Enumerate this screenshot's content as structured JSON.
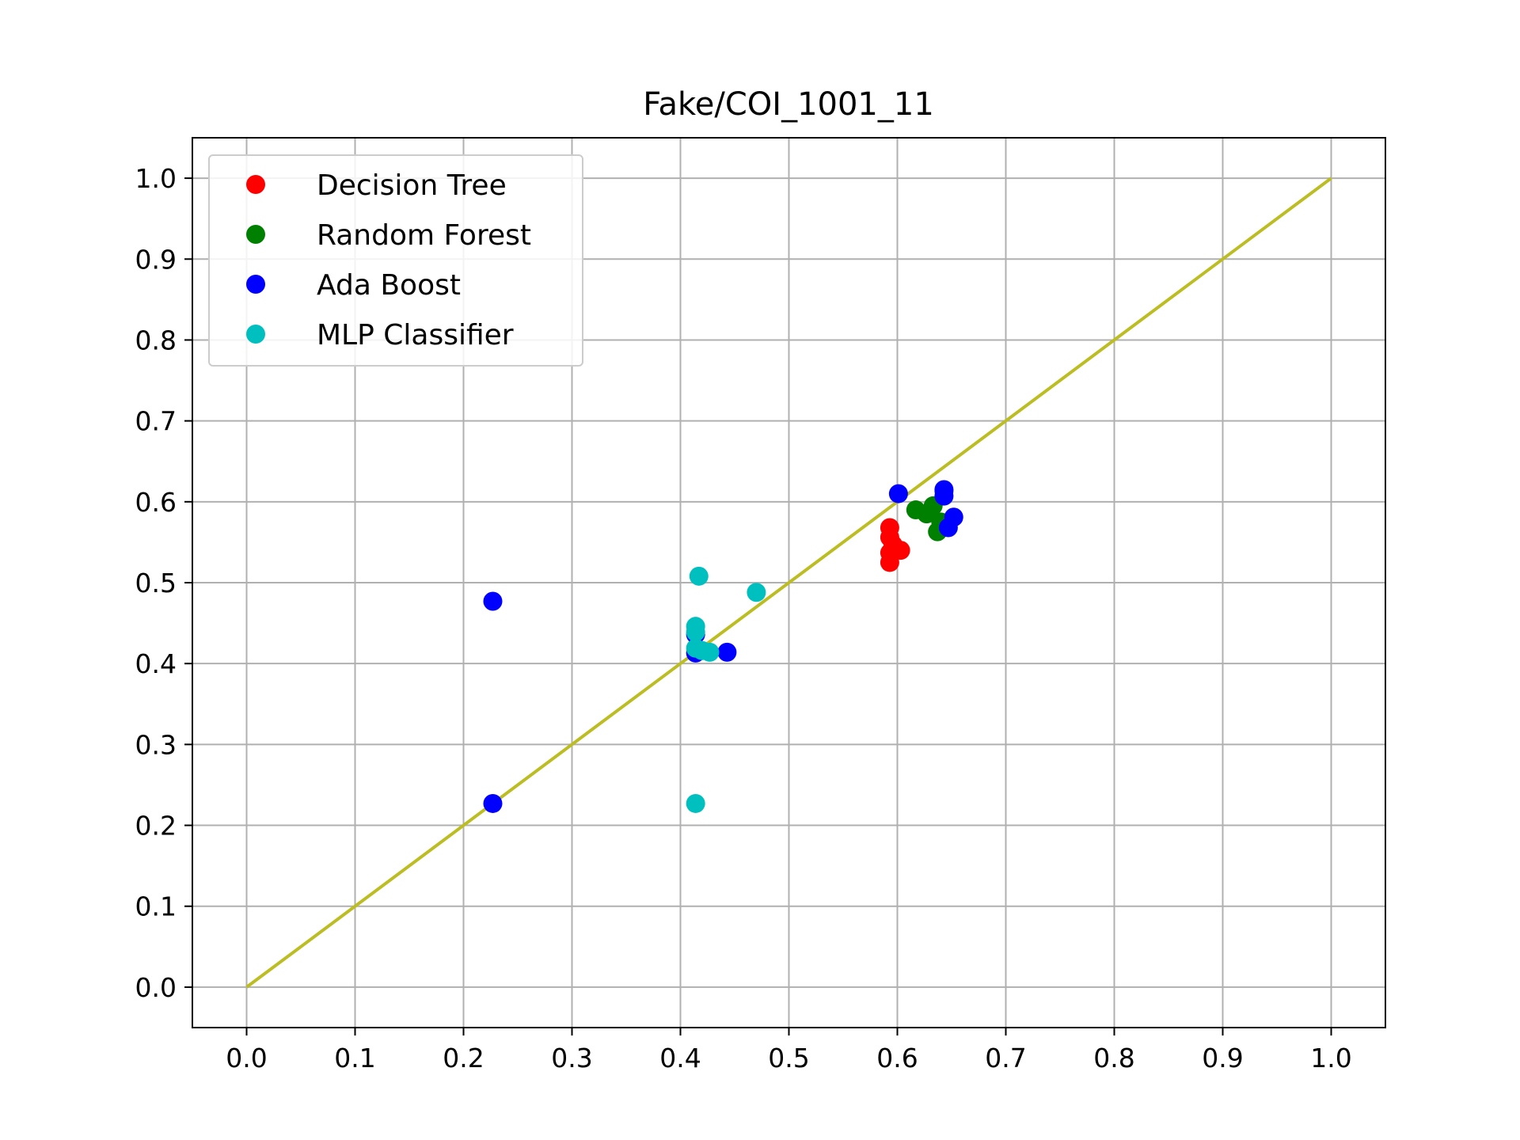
{
  "chart_data": {
    "type": "scatter",
    "title": "Fake/COI_1001_11",
    "xlabel": "",
    "ylabel": "",
    "xlim": [
      -0.05,
      1.05
    ],
    "ylim": [
      -0.05,
      1.05
    ],
    "xticks": [
      "0.0",
      "0.1",
      "0.2",
      "0.3",
      "0.4",
      "0.5",
      "0.6",
      "0.7",
      "0.8",
      "0.9",
      "1.0"
    ],
    "yticks": [
      "0.0",
      "0.1",
      "0.2",
      "0.3",
      "0.4",
      "0.5",
      "0.6",
      "0.7",
      "0.8",
      "0.9",
      "1.0"
    ],
    "grid": true,
    "legend_position": "top-left",
    "reference_line": {
      "x": [
        0,
        1
      ],
      "y": [
        0,
        1
      ],
      "color": "#bcbd22"
    },
    "series": [
      {
        "name": "Decision Tree",
        "color": "#ff0000",
        "points": [
          [
            0.593,
            0.568
          ],
          [
            0.593,
            0.556
          ],
          [
            0.593,
            0.537
          ],
          [
            0.603,
            0.54
          ],
          [
            0.593,
            0.525
          ],
          [
            0.596,
            0.547
          ]
        ]
      },
      {
        "name": "Random Forest",
        "color": "#008000",
        "points": [
          [
            0.617,
            0.59
          ],
          [
            0.627,
            0.585
          ],
          [
            0.633,
            0.595
          ],
          [
            0.637,
            0.563
          ],
          [
            0.643,
            0.613
          ],
          [
            0.64,
            0.575
          ]
        ]
      },
      {
        "name": "Ada Boost",
        "color": "#0000ff",
        "points": [
          [
            0.227,
            0.477
          ],
          [
            0.227,
            0.227
          ],
          [
            0.414,
            0.436
          ],
          [
            0.414,
            0.413
          ],
          [
            0.443,
            0.414
          ],
          [
            0.601,
            0.61
          ],
          [
            0.643,
            0.615
          ],
          [
            0.643,
            0.607
          ],
          [
            0.652,
            0.581
          ],
          [
            0.647,
            0.568
          ]
        ]
      },
      {
        "name": "MLP Classifier",
        "color": "#00bfbf",
        "points": [
          [
            0.417,
            0.508
          ],
          [
            0.47,
            0.488
          ],
          [
            0.414,
            0.446
          ],
          [
            0.414,
            0.439
          ],
          [
            0.414,
            0.419
          ],
          [
            0.42,
            0.416
          ],
          [
            0.427,
            0.414
          ],
          [
            0.414,
            0.227
          ]
        ]
      }
    ]
  }
}
